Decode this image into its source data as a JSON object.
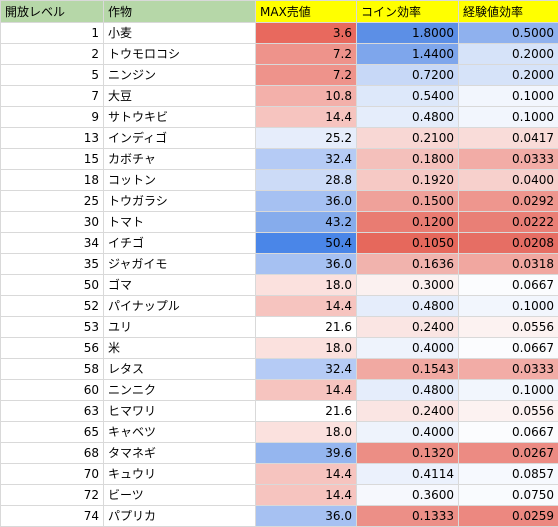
{
  "colors": {
    "header_green": "#b6d7a8",
    "header_yellow": "#ffff00",
    "scale_low": "#e67c73",
    "scale_mid": "#ffffff",
    "scale_high": "#4a86e8"
  },
  "headers": [
    "開放レベル",
    "作物",
    "MAX売値",
    "コイン効率",
    "経験値効率"
  ],
  "rows": [
    {
      "level": "1",
      "crop": "小麦",
      "price": "3.6",
      "coin": "1.8000",
      "exp": "0.5000",
      "pc": "#e8695e",
      "cc": "#5c8fe6",
      "ec": "#8fb1ee"
    },
    {
      "level": "2",
      "crop": "トウモロコシ",
      "price": "7.2",
      "coin": "1.4400",
      "exp": "0.2000",
      "pc": "#ee938b",
      "cc": "#7ea6ec",
      "ec": "#d6e3f9"
    },
    {
      "level": "5",
      "crop": "ニンジン",
      "price": "7.2",
      "coin": "0.7200",
      "exp": "0.2000",
      "pc": "#ee938b",
      "cc": "#c7d8f7",
      "ec": "#d6e3f9"
    },
    {
      "level": "7",
      "crop": "大豆",
      "price": "10.8",
      "coin": "0.5400",
      "exp": "0.1000",
      "pc": "#f3b0aa",
      "cc": "#dde8fa",
      "ec": "#f2f6fd"
    },
    {
      "level": "9",
      "crop": "サトウキビ",
      "price": "14.4",
      "coin": "0.4800",
      "exp": "0.1000",
      "pc": "#f6c4bf",
      "cc": "#e5edfb",
      "ec": "#f2f6fd"
    },
    {
      "level": "13",
      "crop": "インディゴ",
      "price": "25.2",
      "coin": "0.2100",
      "exp": "0.0417",
      "pc": "#e6edfb",
      "cc": "#f8d7d4",
      "ec": "#f9dcd9"
    },
    {
      "level": "15",
      "crop": "カボチャ",
      "price": "32.4",
      "coin": "0.1800",
      "exp": "0.0333",
      "pc": "#b5cbf5",
      "cc": "#f4c0bb",
      "ec": "#f2aca6"
    },
    {
      "level": "18",
      "crop": "コットン",
      "price": "28.8",
      "coin": "0.1920",
      "exp": "0.0400",
      "pc": "#ccdbf7",
      "cc": "#f6c9c5",
      "ec": "#f7d0cc"
    },
    {
      "level": "25",
      "crop": "トウガラシ",
      "price": "36.0",
      "coin": "0.1500",
      "exp": "0.0292",
      "pc": "#a6c1f2",
      "cc": "#efa19a",
      "ec": "#ee968e"
    },
    {
      "level": "30",
      "crop": "トマト",
      "price": "43.2",
      "coin": "0.1200",
      "exp": "0.0222",
      "pc": "#86acec",
      "cc": "#e97c72",
      "ec": "#e97f76"
    },
    {
      "level": "34",
      "crop": "イチゴ",
      "price": "50.4",
      "coin": "0.1050",
      "exp": "0.0208",
      "pc": "#4a86e8",
      "cc": "#e6685c",
      "ec": "#e66e64"
    },
    {
      "level": "35",
      "crop": "ジャガイモ",
      "price": "36.0",
      "coin": "0.1636",
      "exp": "0.0318",
      "pc": "#a6c1f2",
      "cc": "#f1b3ad",
      "ec": "#f1a7a0"
    },
    {
      "level": "50",
      "crop": "ゴマ",
      "price": "18.0",
      "coin": "0.3000",
      "exp": "0.0667",
      "pc": "#fbe1de",
      "cc": "#fbf1f0",
      "ec": "#fbfcfe"
    },
    {
      "level": "52",
      "crop": "パイナップル",
      "price": "14.4",
      "coin": "0.4800",
      "exp": "0.1000",
      "pc": "#f6c4bf",
      "cc": "#e5edfb",
      "ec": "#f2f6fd"
    },
    {
      "level": "53",
      "crop": "ユリ",
      "price": "21.6",
      "coin": "0.2400",
      "exp": "0.0556",
      "pc": "#ffffff",
      "cc": "#fae5e3",
      "ec": "#fcf2f1"
    },
    {
      "level": "56",
      "crop": "米",
      "price": "18.0",
      "coin": "0.4000",
      "exp": "0.0667",
      "pc": "#fbe1de",
      "cc": "#eef3fc",
      "ec": "#fbfcfe"
    },
    {
      "level": "58",
      "crop": "レタス",
      "price": "32.4",
      "coin": "0.1543",
      "exp": "0.0333",
      "pc": "#b5cbf5",
      "cc": "#f1a9a2",
      "ec": "#f2aca6"
    },
    {
      "level": "60",
      "crop": "ニンニク",
      "price": "14.4",
      "coin": "0.4800",
      "exp": "0.1000",
      "pc": "#f6c4bf",
      "cc": "#e5edfb",
      "ec": "#f2f6fd"
    },
    {
      "level": "63",
      "crop": "ヒマワリ",
      "price": "21.6",
      "coin": "0.2400",
      "exp": "0.0556",
      "pc": "#ffffff",
      "cc": "#fae5e3",
      "ec": "#fcf2f1"
    },
    {
      "level": "65",
      "crop": "キャベツ",
      "price": "18.0",
      "coin": "0.4000",
      "exp": "0.0667",
      "pc": "#fbe1de",
      "cc": "#eef3fc",
      "ec": "#fbfcfe"
    },
    {
      "level": "68",
      "crop": "タマネギ",
      "price": "39.6",
      "coin": "0.1320",
      "exp": "0.0267",
      "pc": "#95b6ef",
      "cc": "#ec8e85",
      "ec": "#ec8b83"
    },
    {
      "level": "70",
      "crop": "キュウリ",
      "price": "14.4",
      "coin": "0.4114",
      "exp": "0.0857",
      "pc": "#f6c4bf",
      "cc": "#ebf1fc",
      "ec": "#f6f9fe"
    },
    {
      "level": "72",
      "crop": "ビーツ",
      "price": "14.4",
      "coin": "0.3600",
      "exp": "0.0750",
      "pc": "#f6c4bf",
      "cc": "#f6f8fd",
      "ec": "#f9fbfe"
    },
    {
      "level": "74",
      "crop": "パプリカ",
      "price": "36.0",
      "coin": "0.1333",
      "exp": "0.0259",
      "pc": "#a6c1f2",
      "cc": "#ec8f87",
      "ec": "#ec8880"
    }
  ]
}
